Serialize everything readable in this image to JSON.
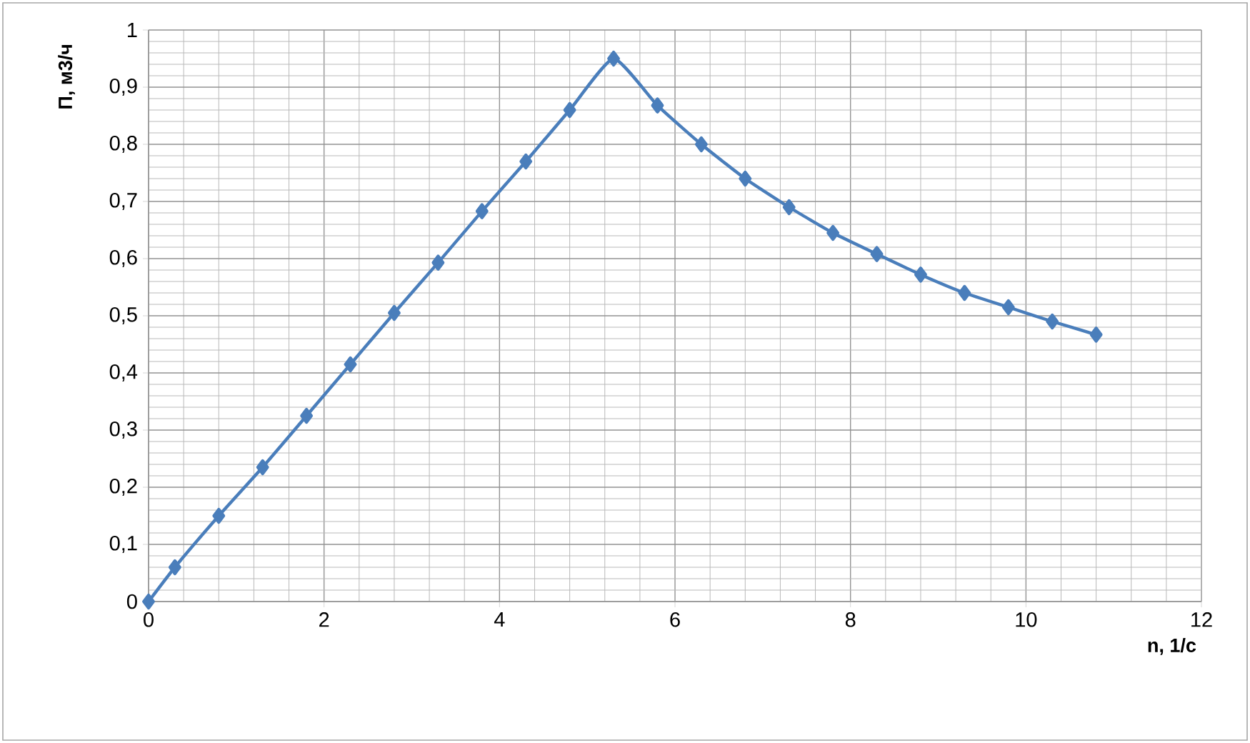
{
  "chart_data": {
    "type": "line",
    "xlabel": "n, 1/с",
    "ylabel": "П, м3/ч",
    "x": [
      0,
      0.3,
      0.8,
      1.3,
      1.8,
      2.3,
      2.8,
      3.3,
      3.8,
      4.3,
      4.8,
      5.3,
      5.8,
      6.3,
      6.8,
      7.3,
      7.8,
      8.3,
      8.8,
      9.3,
      9.8,
      10.3,
      10.8
    ],
    "series": [
      {
        "color": "#4a7ebb",
        "values": [
          0,
          0.06,
          0.15,
          0.235,
          0.325,
          0.415,
          0.505,
          0.593,
          0.683,
          0.77,
          0.86,
          0.95,
          0.868,
          0.8,
          0.74,
          0.69,
          0.645,
          0.608,
          0.572,
          0.54,
          0.515,
          0.49,
          0.467
        ]
      }
    ],
    "xlim": [
      0,
      12
    ],
    "xticks": [
      0,
      2,
      4,
      6,
      8,
      10,
      12
    ],
    "ylim": [
      0,
      1
    ],
    "yticks": [
      0,
      {
        "value": 0.1,
        "label": "0,1"
      },
      {
        "value": 0.2,
        "label": "0,2"
      },
      {
        "value": 0.3,
        "label": "0,3"
      },
      {
        "value": 0.4,
        "label": "0,4"
      },
      {
        "value": 0.5,
        "label": "0,5"
      },
      {
        "value": 0.6,
        "label": "0,6"
      },
      {
        "value": 0.7,
        "label": "0,7"
      },
      {
        "value": 0.8,
        "label": "0,8"
      },
      {
        "value": 0.9,
        "label": "0,9"
      },
      1
    ],
    "grid": true,
    "marker": "diamond",
    "line_style": "solid"
  }
}
